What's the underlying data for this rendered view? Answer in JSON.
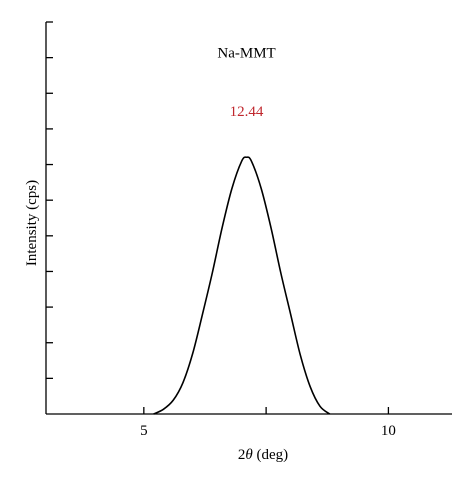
{
  "chart_data": {
    "type": "line",
    "xlabel_prefix": "2",
    "xlabel_symbol": "θ",
    "xlabel_suffix": " (deg)",
    "ylabel": "Intensity (cps)",
    "xlim": [
      3,
      11.3
    ],
    "ylim": [
      0,
      10
    ],
    "x_ticks": [
      5,
      10
    ],
    "x_minor_ticks": [
      7.5
    ],
    "y_tick_count": 12,
    "grid": false,
    "series": [
      {
        "name": "Na-MMT",
        "color": "#000000",
        "x": [
          5.2,
          5.4,
          5.6,
          5.8,
          6.0,
          6.2,
          6.4,
          6.6,
          6.8,
          7.0,
          7.1,
          7.2,
          7.4,
          7.6,
          7.8,
          8.0,
          8.2,
          8.4,
          8.6,
          8.8
        ],
        "y": [
          0.0,
          0.12,
          0.35,
          0.8,
          1.55,
          2.55,
          3.6,
          4.75,
          5.75,
          6.45,
          6.55,
          6.45,
          5.75,
          4.75,
          3.6,
          2.55,
          1.5,
          0.7,
          0.2,
          0.0
        ]
      }
    ],
    "annotations": [
      {
        "text": "12.44",
        "x": 7.1,
        "y": 7.6,
        "color": "#c0272d"
      }
    ],
    "series_label": {
      "text": "Na-MMT",
      "x": 7.1,
      "y": 9.1
    }
  }
}
